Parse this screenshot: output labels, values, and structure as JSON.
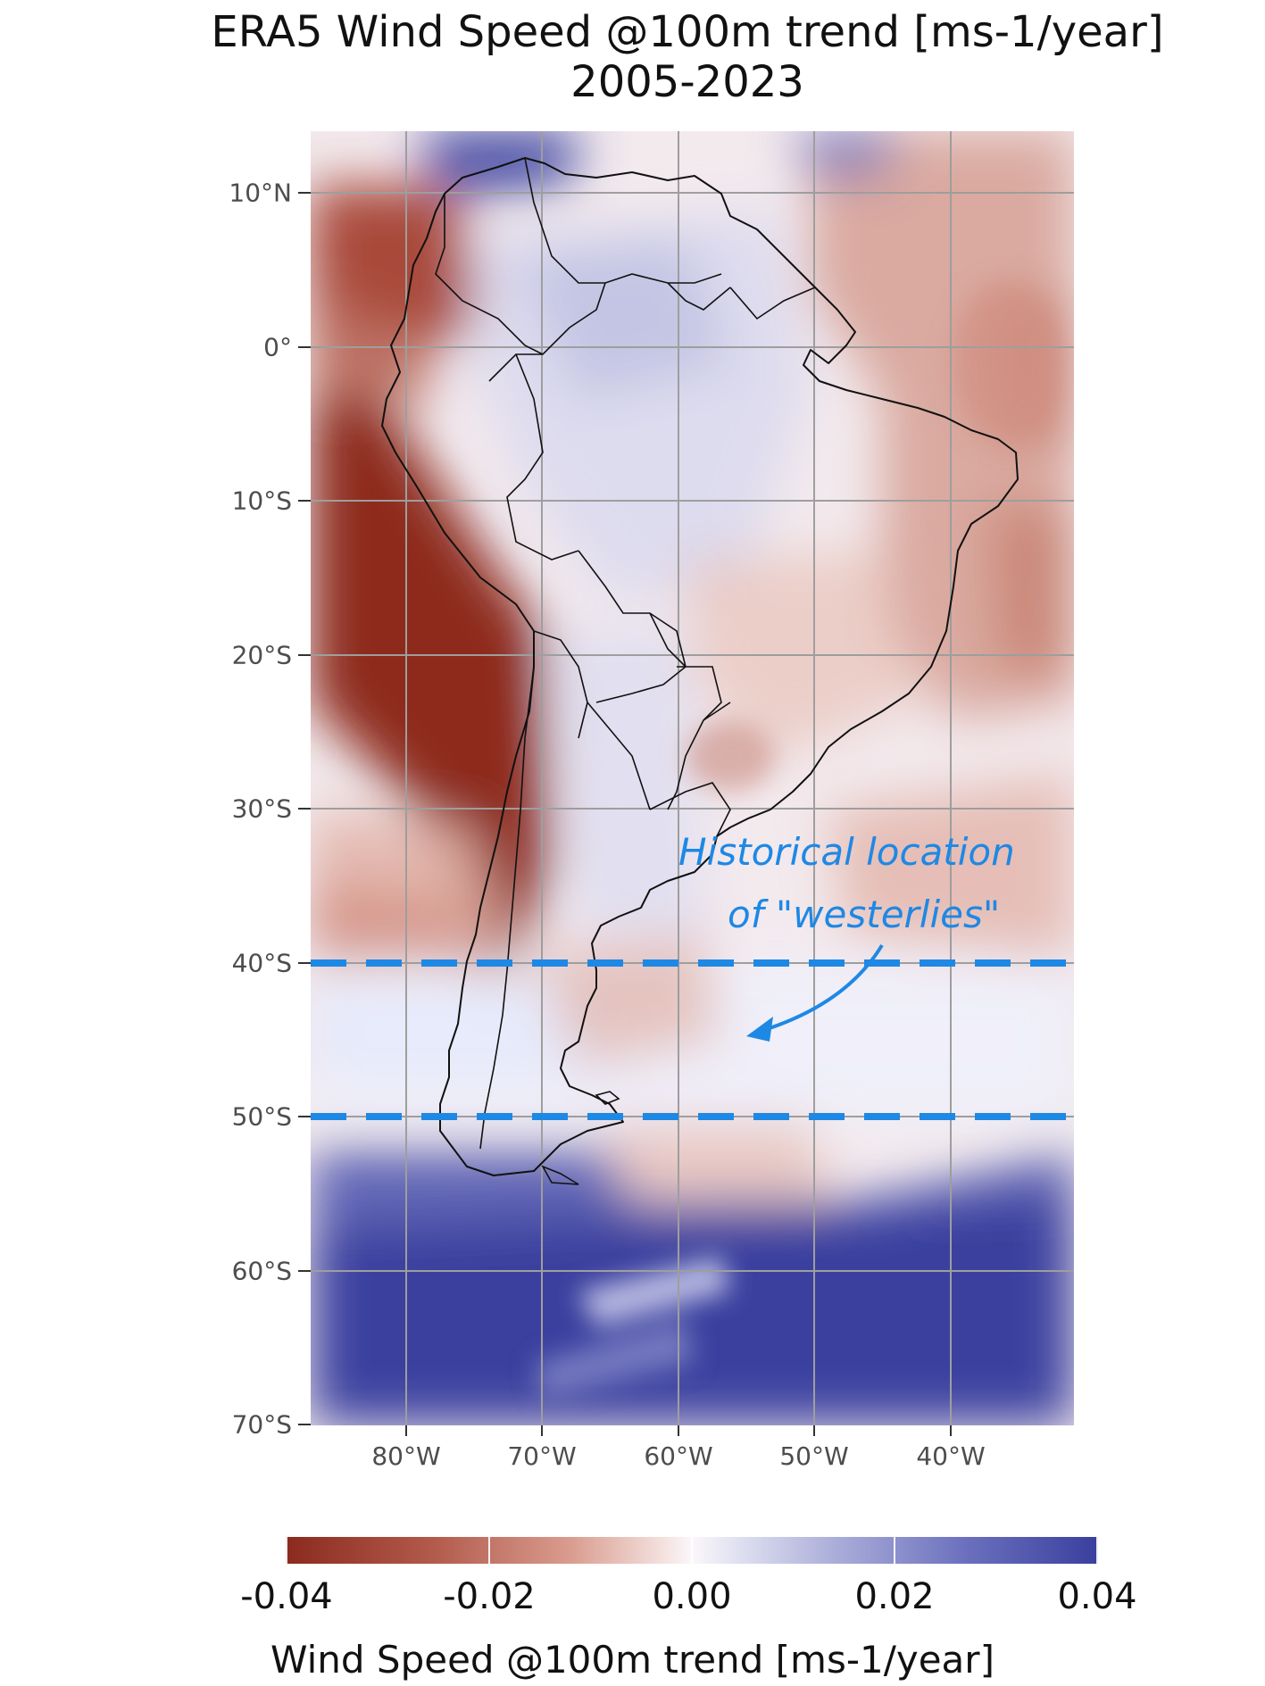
{
  "title": {
    "line1": "ERA5 Wind Speed @100m trend [ms-1/year]",
    "line2": "2005-2023"
  },
  "map": {
    "region": "South America",
    "y_axis": {
      "ticks": [
        "10°N",
        "0°",
        "10°S",
        "20°S",
        "30°S",
        "40°S",
        "50°S",
        "60°S",
        "70°S"
      ],
      "tick_values": [
        10,
        0,
        -10,
        -20,
        -30,
        -40,
        -50,
        -60,
        -70
      ]
    },
    "x_axis": {
      "ticks": [
        "80°W",
        "70°W",
        "60°W",
        "50°W",
        "40°W"
      ],
      "tick_values": [
        -80,
        -70,
        -60,
        -50,
        -40
      ]
    },
    "grid": true,
    "dashed_lines": [
      {
        "lat": -40,
        "color": "#1e88e5"
      },
      {
        "lat": -50,
        "color": "#1e88e5"
      }
    ],
    "annotation": {
      "line1": "Historical location",
      "line2": "of \"westerlies\"",
      "color": "#1e88e5"
    }
  },
  "colorbar": {
    "title": "Wind Speed @100m trend [ms-1/year]",
    "labels": [
      "-0.04",
      "-0.02",
      "0.00",
      "0.02",
      "0.04"
    ],
    "values": [
      -0.04,
      -0.02,
      0.0,
      0.02,
      0.04
    ],
    "colors": {
      "negative": "#8b2a1f",
      "zero": "#fbf7fa",
      "positive": "#3a3f9e"
    }
  }
}
